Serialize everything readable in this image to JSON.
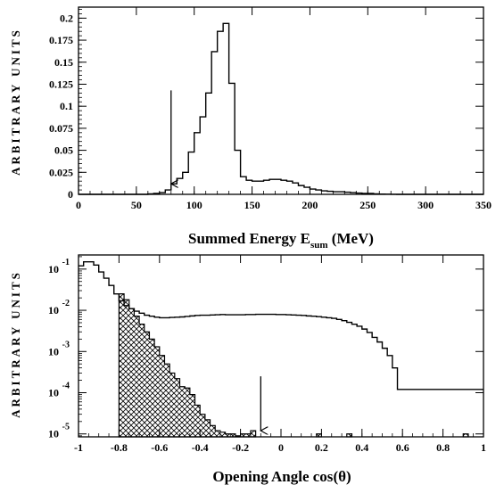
{
  "chart_data": [
    {
      "type": "histogram",
      "ylabel": "ARBITRARY  UNITS",
      "xlabel": {
        "main": "Summed Energy E",
        "subscript": "sum",
        "unit": " (MeV)"
      },
      "xlim": [
        0,
        350
      ],
      "ylim": [
        0,
        0.2125
      ],
      "yscale": "linear",
      "grid": false,
      "xticks": [
        0,
        50,
        100,
        150,
        200,
        250,
        300,
        350
      ],
      "yticks": [
        0,
        0.025,
        0.05,
        0.075,
        0.1,
        0.125,
        0.15,
        0.175,
        0.2
      ],
      "ytick_labels": [
        "0",
        "0.025",
        "0.05",
        "0.075",
        "0.1",
        "0.125",
        "0.15",
        "0.175",
        "0.2"
      ],
      "bin_width": 5,
      "bin_edges_start": 0,
      "values": [
        0,
        0,
        0,
        0,
        0,
        0,
        0,
        0,
        0,
        0,
        0,
        0,
        0.0005,
        0.001,
        0.002,
        0.005,
        0.012,
        0.018,
        0.025,
        0.048,
        0.07,
        0.088,
        0.115,
        0.162,
        0.185,
        0.194,
        0.126,
        0.05,
        0.02,
        0.016,
        0.015,
        0.015,
        0.016,
        0.017,
        0.017,
        0.016,
        0.015,
        0.013,
        0.01,
        0.008,
        0.006,
        0.005,
        0.004,
        0.0035,
        0.003,
        0.003,
        0.0025,
        0.002,
        0.0015,
        0.001,
        0.001,
        0.0005,
        0.0003,
        0.0002,
        0.0001,
        0,
        0,
        0,
        0,
        0,
        0,
        0,
        0,
        0,
        0,
        0,
        0,
        0,
        0,
        0
      ],
      "annotations": [
        {
          "type": "arrow",
          "x": 80,
          "from_y": 0.118,
          "to_y": 0.012
        }
      ]
    },
    {
      "type": "histogram",
      "ylabel": "ARBITRARY  UNITS",
      "xlabel": {
        "main": "Opening Angle  cos",
        "theta": "(θ)"
      },
      "xlim": [
        -1,
        1
      ],
      "ylim": [
        8.5e-06,
        0.22
      ],
      "yscale": "log",
      "grid": false,
      "xticks": [
        -1,
        -0.8,
        -0.6,
        -0.4,
        -0.2,
        0,
        0.2,
        0.4,
        0.6,
        0.8,
        1
      ],
      "xtick_labels": [
        "-1",
        "-0.8",
        "-0.6",
        "-0.4",
        "-0.2",
        "0",
        "0.2",
        "0.4",
        "0.6",
        "0.8",
        "1"
      ],
      "yticks": [
        0.1,
        0.01,
        0.001,
        0.0001,
        1e-05
      ],
      "ytick_labels": [
        {
          "base": "10",
          "exp": "-1"
        },
        {
          "base": "10",
          "exp": "-2"
        },
        {
          "base": "10",
          "exp": "-3"
        },
        {
          "base": "10",
          "exp": "-4"
        },
        {
          "base": "10",
          "exp": "-5"
        }
      ],
      "series": [
        {
          "style": "line",
          "bin_width": 0.025,
          "bin_edges_start": -1,
          "values": [
            0.12,
            0.15,
            0.15,
            0.125,
            0.085,
            0.06,
            0.04,
            0.025,
            0.017,
            0.013,
            0.011,
            0.0095,
            0.0085,
            0.0076,
            0.0072,
            0.0068,
            0.0066,
            0.0066,
            0.0067,
            0.0068,
            0.0069,
            0.0071,
            0.0073,
            0.0075,
            0.0076,
            0.0076,
            0.0077,
            0.0078,
            0.0079,
            0.0078,
            0.0078,
            0.0078,
            0.0078,
            0.0079,
            0.0079,
            0.008,
            0.008,
            0.008,
            0.008,
            0.0079,
            0.0079,
            0.0078,
            0.0077,
            0.0076,
            0.0075,
            0.0073,
            0.0072,
            0.007,
            0.0068,
            0.0066,
            0.0064,
            0.006,
            0.0056,
            0.0051,
            0.0046,
            0.0041,
            0.0035,
            0.0029,
            0.0022,
            0.0017,
            0.0012,
            0.0008,
            0.0004,
            0.00012
          ]
        },
        {
          "style": "hatched",
          "bin_width": 0.025,
          "bin_edges_start": -0.8,
          "values": [
            0.025,
            0.018,
            0.011,
            0.0072,
            0.0046,
            0.003,
            0.002,
            0.0013,
            0.0008,
            0.0005,
            0.0003,
            0.00022,
            0.00014,
            0.00013,
            9e-05,
            5e-05,
            3e-05,
            2.2e-05,
            1.6e-05,
            1.2e-05,
            1.1e-05,
            1e-05,
            1e-05,
            9e-06,
            1e-05,
            1e-05,
            1.2e-05
          ]
        },
        {
          "style": "hatched_box",
          "boxes": [
            {
              "x0": 0.175,
              "x1": 0.2
            },
            {
              "x0": 0.325,
              "x1": 0.35
            },
            {
              "x0": 0.9,
              "x1": 0.925
            }
          ],
          "value": 1e-05
        }
      ],
      "annotations": [
        {
          "type": "arrow",
          "x": -0.1,
          "from_y": 0.00025,
          "to_y": 1.2e-05
        }
      ]
    }
  ]
}
